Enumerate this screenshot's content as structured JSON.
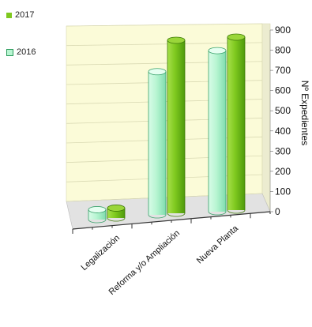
{
  "chart_data": {
    "type": "bar",
    "title": "",
    "xlabel": "",
    "ylabel": "Nº Expedientes",
    "ylim": [
      0,
      900
    ],
    "yticks": [
      0,
      100,
      200,
      300,
      400,
      500,
      600,
      700,
      800,
      900
    ],
    "categories": [
      "Legalización",
      "Reforma y/o Ampliación",
      "Nueva Planta"
    ],
    "series": [
      {
        "name": "2016",
        "values": [
          50,
          720,
          810
        ],
        "color": "#b8f5d2"
      },
      {
        "name": "2017",
        "values": [
          50,
          870,
          870
        ],
        "color": "#7ec81e"
      }
    ],
    "legend_position": "top-left",
    "grid": true,
    "wall_color": "#fbfbd8"
  }
}
